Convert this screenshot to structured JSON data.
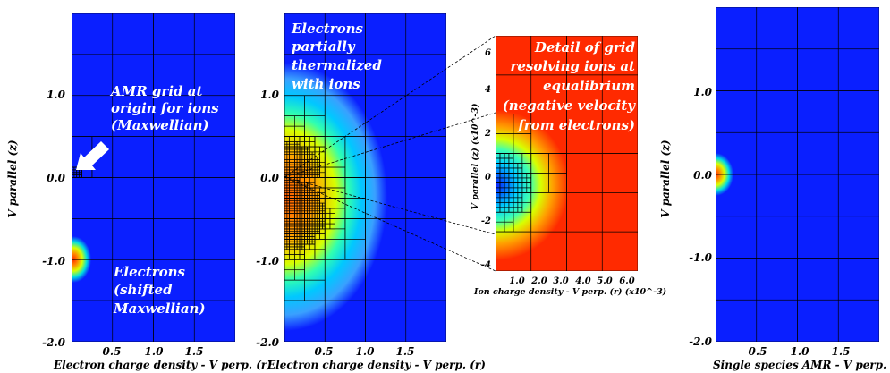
{
  "colors": {
    "background": "#0a1fff",
    "detail_background": "#ff2a00",
    "grid": "#000000",
    "annotation_text": "#ffffff",
    "arrow": "#ffffff",
    "colormap": [
      "#0a1fff",
      "#00b4ff",
      "#00f0c8",
      "#d8ff00",
      "#ff8a00",
      "#ff2a00"
    ]
  },
  "chart_data": [
    {
      "type": "heatmap",
      "title": "",
      "xlabel": "Electron charge density - V perp. (r)",
      "ylabel": "V parallel (z)",
      "xlim": [
        0,
        2.0
      ],
      "ylim": [
        -2.0,
        2.0
      ],
      "x_ticks": [
        "0.5",
        "1.0",
        "1.5"
      ],
      "y_ticks": [
        "1.0",
        "0.0",
        "-1.0",
        "-2.0"
      ],
      "grid": "AMR",
      "annotations": [
        {
          "text": [
            "AMR grid at",
            "origin for ions",
            "(Maxwellian)"
          ]
        },
        {
          "text": [
            "Electrons",
            "(shifted",
            "Maxwellian)"
          ]
        }
      ],
      "features": [
        {
          "name": "ion peak",
          "x": 0.0,
          "z": 0.0
        },
        {
          "name": "electron peak",
          "x": 0.0,
          "z": -1.0
        }
      ]
    },
    {
      "type": "heatmap",
      "title": "",
      "xlabel": "Electron charge density - V perp. (r)",
      "ylabel": "",
      "xlim": [
        0,
        2.0
      ],
      "ylim": [
        -2.0,
        2.0
      ],
      "x_ticks": [
        "0.5",
        "1.0",
        "1.5"
      ],
      "y_ticks": [
        "1.0",
        "0.0",
        "-1.0",
        "-2.0"
      ],
      "grid": "AMR",
      "annotations": [
        {
          "text": [
            "Electrons",
            "partially",
            "thermalized",
            "with ions"
          ]
        }
      ],
      "features": [
        {
          "name": "partially thermalized distribution",
          "x": 0.0,
          "z": 0.0
        }
      ]
    },
    {
      "type": "heatmap",
      "title": "",
      "xlabel": "Ion charge density - V perp. (r) (x10^-3)",
      "ylabel": "V parallel (z) (x10^-3)",
      "xlim": [
        0,
        6.5
      ],
      "ylim": [
        -4.5,
        6.5
      ],
      "x_ticks": [
        "1.0",
        "2.0",
        "3.0",
        "4.0",
        "5.0",
        "6.0"
      ],
      "y_ticks": [
        "6",
        "4",
        "2",
        "0",
        "-2",
        "-4"
      ],
      "grid": "AMR",
      "annotations": [
        {
          "text": [
            "Detail of grid",
            "resolving ions at",
            "equalibrium",
            "(negative velocity",
            "from electrons)"
          ]
        }
      ],
      "features": [
        {
          "name": "ion peak",
          "x": 0.0,
          "z": 0.0
        }
      ]
    },
    {
      "type": "heatmap",
      "title": "",
      "xlabel": "Single species AMR - V perp. (r)",
      "ylabel": "V parallel (z)",
      "xlim": [
        0,
        2.0
      ],
      "ylim": [
        -2.0,
        2.0
      ],
      "x_ticks": [
        "0.5",
        "1.0",
        "1.5"
      ],
      "y_ticks": [
        "1.0",
        "0.0",
        "-1.0",
        "-2.0"
      ],
      "grid": "AMR",
      "annotations": [],
      "features": [
        {
          "name": "single species peak",
          "x": 0.0,
          "z": 0.0
        }
      ]
    }
  ]
}
